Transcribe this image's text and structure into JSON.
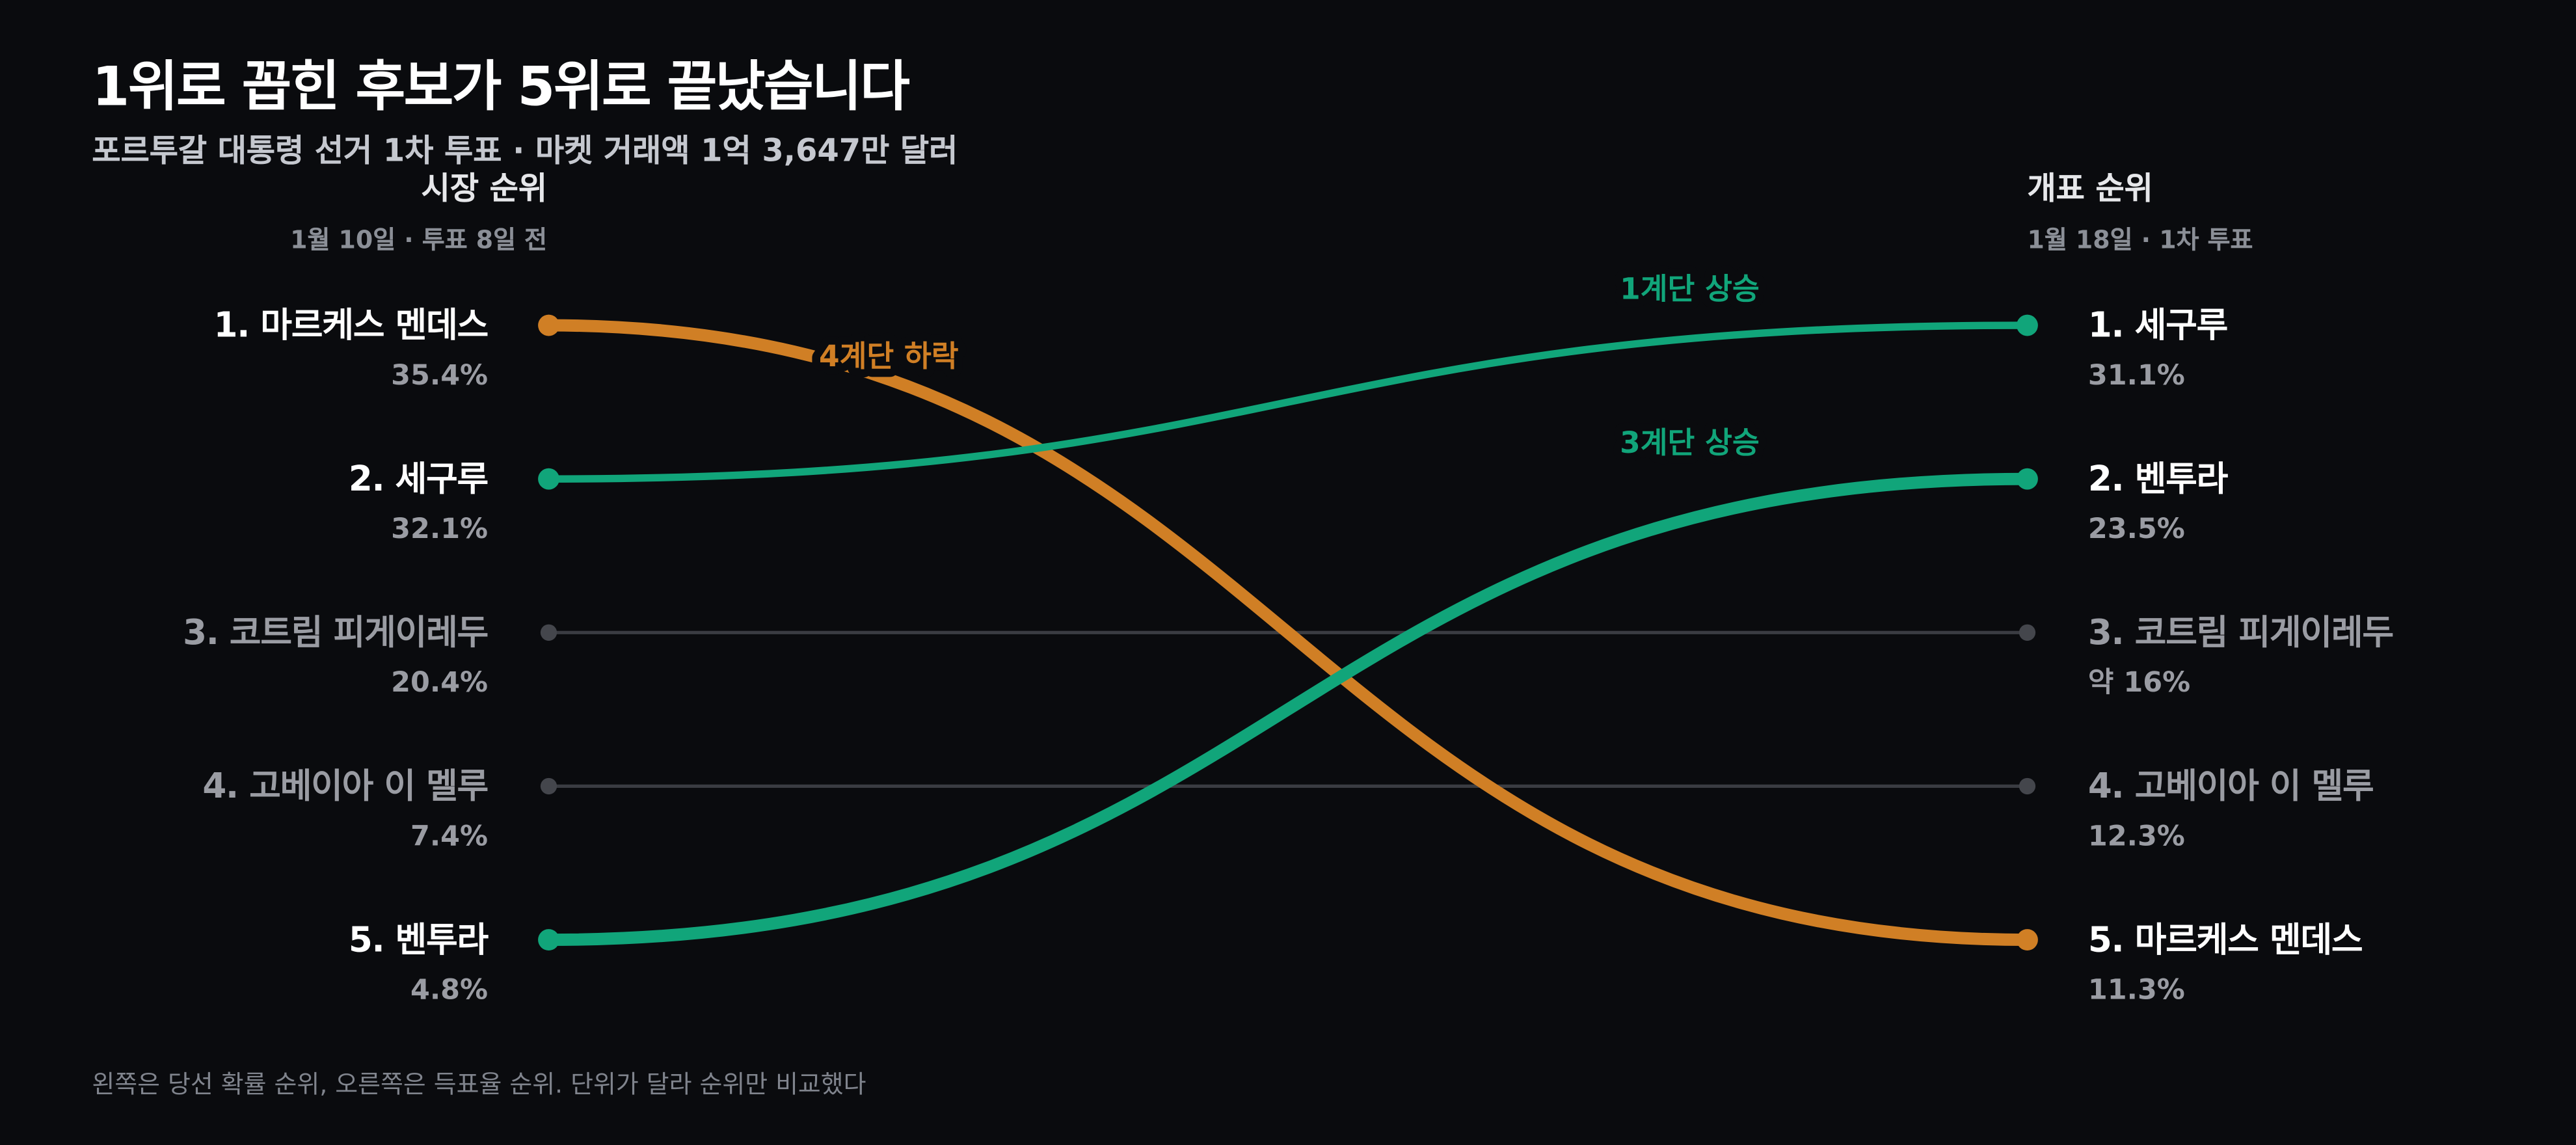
{
  "title": "1위로 꼽힌 후보가 5위로 끝났습니다",
  "subtitle": "포르투갈 대통령 선거 1차 투표 · 마켓 거래액 1억 3,647만 달러",
  "left_header": {
    "title": "시장 순위",
    "subtitle": "1월 10일 · 투표 8일 전"
  },
  "right_header": {
    "title": "개표 순위",
    "subtitle": "1월 18일 · 1차 투표"
  },
  "footnote": "왼쪽은 당선 확률 순위, 오른쪽은 득표율 순위. 단위가 달라 순위만 비교했다",
  "colors": {
    "background": "#0a0b0e",
    "drop": "#d07f25",
    "rise": "#11a57a",
    "flat": "#3a3c42",
    "label_highlight": "#ffffff",
    "label_muted": "#9a9ca3",
    "value": "#9a9ca3"
  },
  "chart_data": {
    "type": "slope",
    "x": [
      "시장 순위",
      "개표 순위"
    ],
    "series": [
      {
        "name": "마르케스 멘데스",
        "rank_start": 1,
        "rank_end": 5,
        "start_value": "35.4%",
        "end_value": "11.3%",
        "trend": "drop",
        "annotation": "4계단 하락",
        "highlight": true
      },
      {
        "name": "세구루",
        "rank_start": 2,
        "rank_end": 1,
        "start_value": "32.1%",
        "end_value": "31.1%",
        "trend": "rise",
        "annotation": "1계단 상승",
        "highlight": true
      },
      {
        "name": "코트림 피게이레두",
        "rank_start": 3,
        "rank_end": 3,
        "start_value": "20.4%",
        "end_value": "약 16%",
        "trend": "flat",
        "highlight": false
      },
      {
        "name": "고베이아 이 멜루",
        "rank_start": 4,
        "rank_end": 4,
        "start_value": "7.4%",
        "end_value": "12.3%",
        "trend": "flat",
        "highlight": false
      },
      {
        "name": "벤투라",
        "rank_start": 5,
        "rank_end": 2,
        "start_value": "4.8%",
        "end_value": "23.5%",
        "trend": "rise",
        "annotation": "3계단 상승",
        "highlight": true
      }
    ]
  }
}
